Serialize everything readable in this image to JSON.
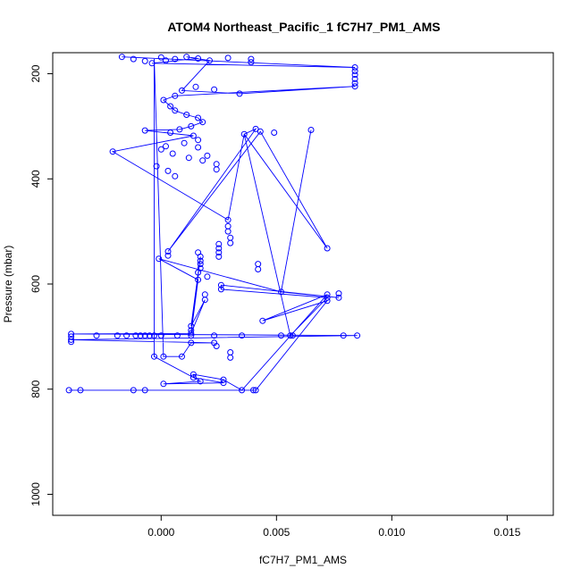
{
  "chart_data": {
    "type": "scatter",
    "title": "ATOM4 Northeast_Pacific_1 fC7H7_PM1_AMS",
    "xlabel": "fC7H7_PM1_AMS",
    "ylabel": "Pressure (mbar)",
    "xlim": [
      -0.0047,
      0.017
    ],
    "ylim": [
      1040,
      160
    ],
    "y_reversed": true,
    "x_ticks": [
      {
        "value": 0.0,
        "label": "0.000"
      },
      {
        "value": 0.005,
        "label": "0.005"
      },
      {
        "value": 0.01,
        "label": "0.010"
      },
      {
        "value": 0.015,
        "label": "0.015"
      }
    ],
    "y_ticks": [
      {
        "value": 200,
        "label": "200"
      },
      {
        "value": 400,
        "label": "400"
      },
      {
        "value": 600,
        "label": "600"
      },
      {
        "value": 800,
        "label": "800"
      },
      {
        "value": 1000,
        "label": "1000"
      }
    ],
    "grid": false,
    "marker": "open-circle",
    "series_color": "#0000ff",
    "series": [
      {
        "points": [
          [
            -0.0017,
            168
          ],
          [
            -0.0012,
            172
          ],
          [
            -0.0007,
            176
          ],
          [
            -0.0004,
            180
          ],
          [
            0.0,
            169
          ],
          [
            0.0002,
            175
          ],
          [
            0.0006,
            172
          ],
          [
            0.0011,
            168
          ],
          [
            0.0016,
            171
          ],
          [
            0.0021,
            175
          ],
          [
            0.0029,
            170
          ],
          [
            0.0039,
            172
          ],
          [
            0.0039,
            178
          ],
          [
            0.0084,
            188
          ],
          [
            0.0084,
            195
          ],
          [
            0.0084,
            202
          ],
          [
            0.0084,
            210
          ],
          [
            0.0084,
            218
          ],
          [
            0.0084,
            224
          ],
          [
            0.0034,
            238
          ],
          [
            0.0023,
            230
          ],
          [
            0.0015,
            225
          ],
          [
            0.0009,
            232
          ],
          [
            0.0006,
            242
          ],
          [
            0.0001,
            250
          ],
          [
            0.0004,
            262
          ],
          [
            0.0006,
            270
          ],
          [
            0.0011,
            278
          ],
          [
            0.0016,
            284
          ],
          [
            0.0018,
            292
          ],
          [
            0.0013,
            300
          ],
          [
            0.0008,
            306
          ],
          [
            -0.0007,
            308
          ],
          [
            0.0004,
            312
          ],
          [
            0.0014,
            318
          ],
          [
            0.0016,
            326
          ],
          [
            0.001,
            332
          ],
          [
            0.0002,
            338
          ],
          [
            0.0,
            344
          ],
          [
            0.0005,
            352
          ],
          [
            0.0012,
            360
          ],
          [
            0.0018,
            365
          ],
          [
            0.0024,
            372
          ],
          [
            0.0024,
            382
          ],
          [
            0.0006,
            395
          ],
          [
            0.0003,
            385
          ],
          [
            -0.0021,
            348
          ],
          [
            -0.0002,
            376
          ],
          [
            0.0016,
            340
          ],
          [
            0.002,
            356
          ],
          [
            0.0036,
            315
          ],
          [
            0.0041,
            305
          ],
          [
            0.0043,
            310
          ],
          [
            0.0049,
            312
          ],
          [
            0.0065,
            307
          ],
          [
            0.0052,
            615
          ],
          [
            0.0072,
            532
          ],
          [
            0.0029,
            478
          ],
          [
            0.0029,
            490
          ],
          [
            0.0029,
            500
          ],
          [
            0.003,
            512
          ],
          [
            0.003,
            522
          ],
          [
            0.0025,
            524
          ],
          [
            0.0025,
            532
          ],
          [
            0.0025,
            540
          ],
          [
            0.0025,
            548
          ],
          [
            0.0003,
            538
          ],
          [
            0.0003,
            546
          ],
          [
            -0.0001,
            552
          ],
          [
            0.0016,
            540
          ],
          [
            0.0017,
            548
          ],
          [
            0.0017,
            556
          ],
          [
            0.0017,
            562
          ],
          [
            0.0017,
            570
          ],
          [
            0.0016,
            578
          ],
          [
            0.002,
            586
          ],
          [
            0.0026,
            602
          ],
          [
            0.0026,
            610
          ],
          [
            0.0042,
            562
          ],
          [
            0.0042,
            572
          ],
          [
            0.0019,
            620
          ],
          [
            0.0019,
            630
          ],
          [
            0.0016,
            592
          ],
          [
            0.0072,
            620
          ],
          [
            0.0072,
            626
          ],
          [
            0.0072,
            632
          ],
          [
            0.0077,
            618
          ],
          [
            0.0077,
            626
          ],
          [
            0.0044,
            670
          ],
          [
            0.0013,
            680
          ],
          [
            0.0013,
            688
          ],
          [
            0.0013,
            694
          ],
          [
            -0.0039,
            695
          ],
          [
            -0.0039,
            700
          ],
          [
            -0.0039,
            706
          ],
          [
            -0.0039,
            710
          ],
          [
            -0.0028,
            698
          ],
          [
            -0.0019,
            698
          ],
          [
            -0.0015,
            698
          ],
          [
            -0.0011,
            698
          ],
          [
            -0.0009,
            698
          ],
          [
            -0.0007,
            698
          ],
          [
            -0.0005,
            698
          ],
          [
            -0.0003,
            698
          ],
          [
            0.0,
            698
          ],
          [
            0.0007,
            698
          ],
          [
            0.0013,
            698
          ],
          [
            0.0023,
            698
          ],
          [
            0.0035,
            698
          ],
          [
            0.0052,
            698
          ],
          [
            0.0056,
            698
          ],
          [
            0.0057,
            698
          ],
          [
            0.0079,
            698
          ],
          [
            0.0085,
            698
          ],
          [
            0.0023,
            712
          ],
          [
            0.0013,
            712
          ],
          [
            0.0024,
            718
          ],
          [
            0.003,
            730
          ],
          [
            0.003,
            740
          ],
          [
            0.0001,
            738
          ],
          [
            -0.0003,
            738
          ],
          [
            0.0009,
            738
          ],
          [
            0.0014,
            772
          ],
          [
            0.0014,
            778
          ],
          [
            0.0027,
            782
          ],
          [
            0.0027,
            788
          ],
          [
            0.0001,
            790
          ],
          [
            0.0017,
            785
          ],
          [
            -0.004,
            802
          ],
          [
            -0.0035,
            802
          ],
          [
            -0.0012,
            802
          ],
          [
            -0.0007,
            802
          ],
          [
            0.0035,
            802
          ],
          [
            0.004,
            802
          ],
          [
            0.0041,
            802
          ]
        ],
        "path": [
          [
            -0.0017,
            168
          ],
          [
            0.0084,
            188
          ],
          [
            -0.0004,
            180
          ],
          [
            0.0016,
            171
          ],
          [
            0.0011,
            168
          ],
          [
            0.0021,
            175
          ],
          [
            0.0009,
            232
          ],
          [
            0.0034,
            238
          ],
          [
            0.0084,
            224
          ],
          [
            0.0006,
            242
          ],
          [
            0.0001,
            250
          ],
          [
            0.0004,
            262
          ],
          [
            0.0006,
            270
          ],
          [
            0.0011,
            278
          ],
          [
            0.0016,
            284
          ],
          [
            0.0018,
            292
          ],
          [
            0.0013,
            300
          ],
          [
            0.0008,
            306
          ],
          [
            -0.0007,
            308
          ],
          [
            0.0014,
            318
          ],
          [
            -0.0021,
            348
          ],
          [
            0.0029,
            478
          ],
          [
            0.0036,
            315
          ],
          [
            0.0041,
            305
          ],
          [
            0.0003,
            538
          ],
          [
            0.0043,
            310
          ],
          [
            0.0072,
            532
          ],
          [
            0.0036,
            315
          ],
          [
            0.0056,
            698
          ],
          [
            0.0072,
            626
          ],
          [
            0.0026,
            610
          ],
          [
            0.0026,
            602
          ],
          [
            0.0077,
            626
          ],
          [
            0.0052,
            615
          ],
          [
            0.0065,
            307
          ],
          [
            0.0052,
            615
          ],
          [
            -0.0001,
            552
          ],
          [
            0.0016,
            592
          ],
          [
            0.0013,
            694
          ],
          [
            0.0017,
            548
          ],
          [
            0.0013,
            680
          ],
          [
            0.0019,
            630
          ],
          [
            0.0013,
            694
          ],
          [
            -0.0039,
            695
          ],
          [
            0.0085,
            698
          ],
          [
            -0.0039,
            706
          ],
          [
            0.0023,
            712
          ],
          [
            0.0013,
            712
          ],
          [
            0.0009,
            738
          ],
          [
            0.0001,
            738
          ],
          [
            -0.0003,
            170
          ],
          [
            -0.0003,
            738
          ],
          [
            0.0017,
            785
          ],
          [
            0.0001,
            790
          ],
          [
            0.0027,
            788
          ],
          [
            0.0014,
            778
          ],
          [
            0.0014,
            772
          ],
          [
            0.0027,
            782
          ],
          [
            0.0035,
            802
          ],
          [
            0.0041,
            802
          ],
          [
            0.0072,
            632
          ],
          [
            0.0044,
            670
          ],
          [
            0.0072,
            620
          ],
          [
            0.0035,
            802
          ],
          [
            -0.004,
            802
          ],
          [
            -0.0012,
            802
          ],
          [
            0.0041,
            802
          ]
        ]
      }
    ]
  }
}
